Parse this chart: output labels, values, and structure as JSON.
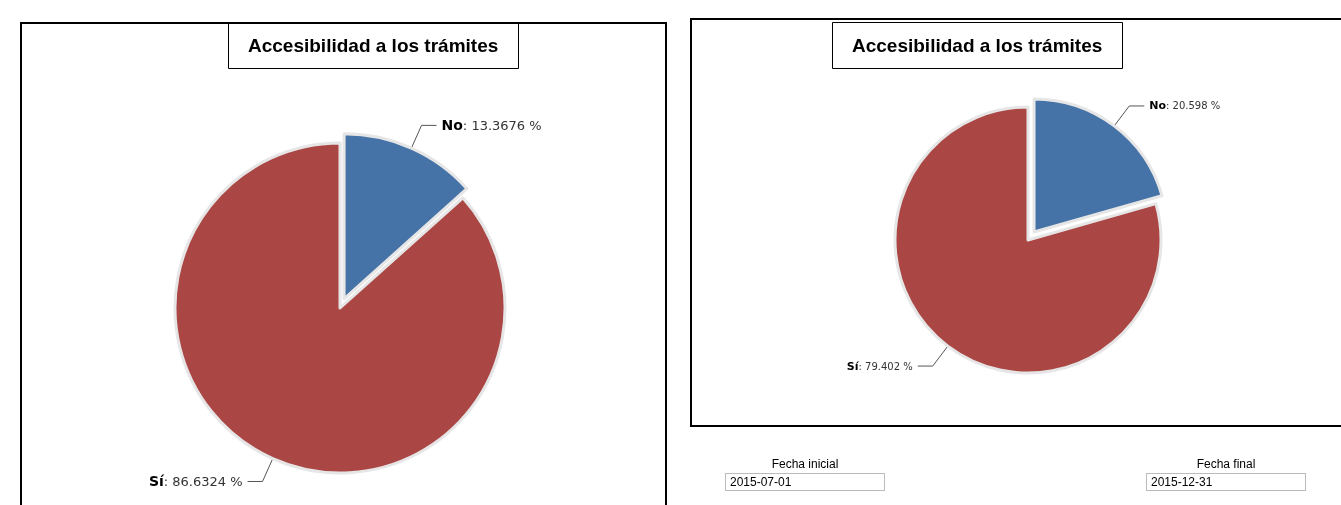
{
  "chart_data": [
    {
      "type": "pie",
      "title": "Accesibilidad a los trámites",
      "categories": [
        "No",
        "Sí"
      ],
      "values": [
        13.3676,
        86.6324
      ],
      "value_labels": [
        ": 13.3676 %",
        ": 86.6324 %"
      ],
      "colors": [
        "#4572a7",
        "#aa4643"
      ],
      "legend": false
    },
    {
      "type": "pie",
      "title": "Accesibilidad a los trámites",
      "categories": [
        "No",
        "Sí"
      ],
      "values": [
        20.598,
        79.402
      ],
      "value_labels": [
        ": 20.598 %",
        ": 79.402 %"
      ],
      "colors": [
        "#4572a7",
        "#aa4643"
      ],
      "legend": false,
      "annotations": [
        "Fecha inicial",
        "2015-07-01",
        "Fecha final",
        "2015-12-31"
      ]
    }
  ]
}
